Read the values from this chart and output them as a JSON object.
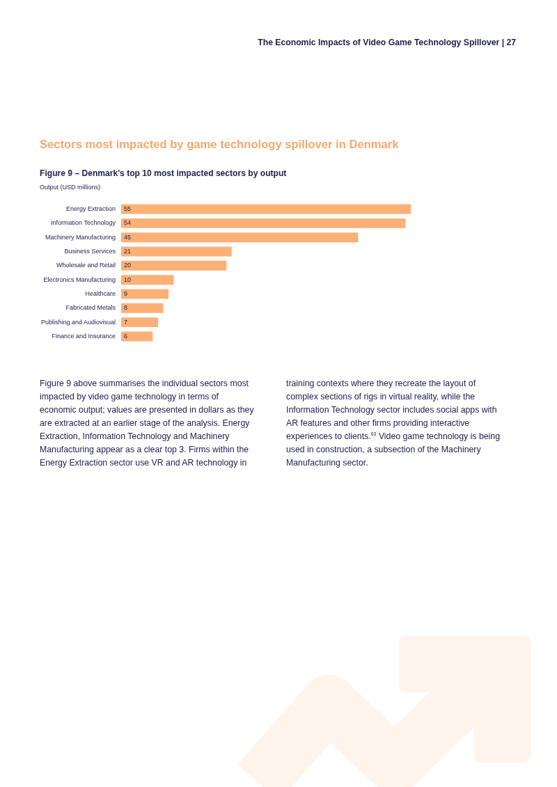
{
  "chart_data": {
    "type": "bar",
    "orientation": "horizontal",
    "title": "Figure 9 – Denmark's top 10 most impacted sectors by output",
    "subtitle": "Output (USD millions)",
    "categories": [
      "Energy Extraction",
      "Information Technology",
      "Machinery Manufacturing",
      "Business Services",
      "Wholesale and Retail",
      "Electronics Manufacturing",
      "Healthcare",
      "Fabricated Metals",
      "Publishing and Audiovisual",
      "Finance and Insurance"
    ],
    "values": [
      55,
      54,
      45,
      21,
      20,
      10,
      9,
      8,
      7,
      6
    ],
    "color": "#fdb075",
    "xlim": [
      0,
      55
    ],
    "data_labels": true,
    "tick_labels": "y",
    "grid": false,
    "legend": false,
    "annotations": [
      "The Economic Impacts of Video Game Technology Spillover | 27",
      "Sectors most impacted by game technology spillover in Denmark",
      "Figure 9 above summarises the individual sectors most impacted by video game technology in terms of economic output; values are presented in dollars as they are extracted at an earlier stage of the analysis. Energy Extraction, Information Technology and Machinery Manufacturing appear as a clear top 3. Firms within the Energy Extraction sector use VR and AR technology in training contexts where they recreate the layout of complex sections of rigs in virtual reality, while the Information Technology sector includes social apps with AR features and other firms providing interactive experiences to clients.$^{63}$ Video game technology is being used in construction, a subsection of the Machinery Manufacturing sector."
    ]
  }
}
